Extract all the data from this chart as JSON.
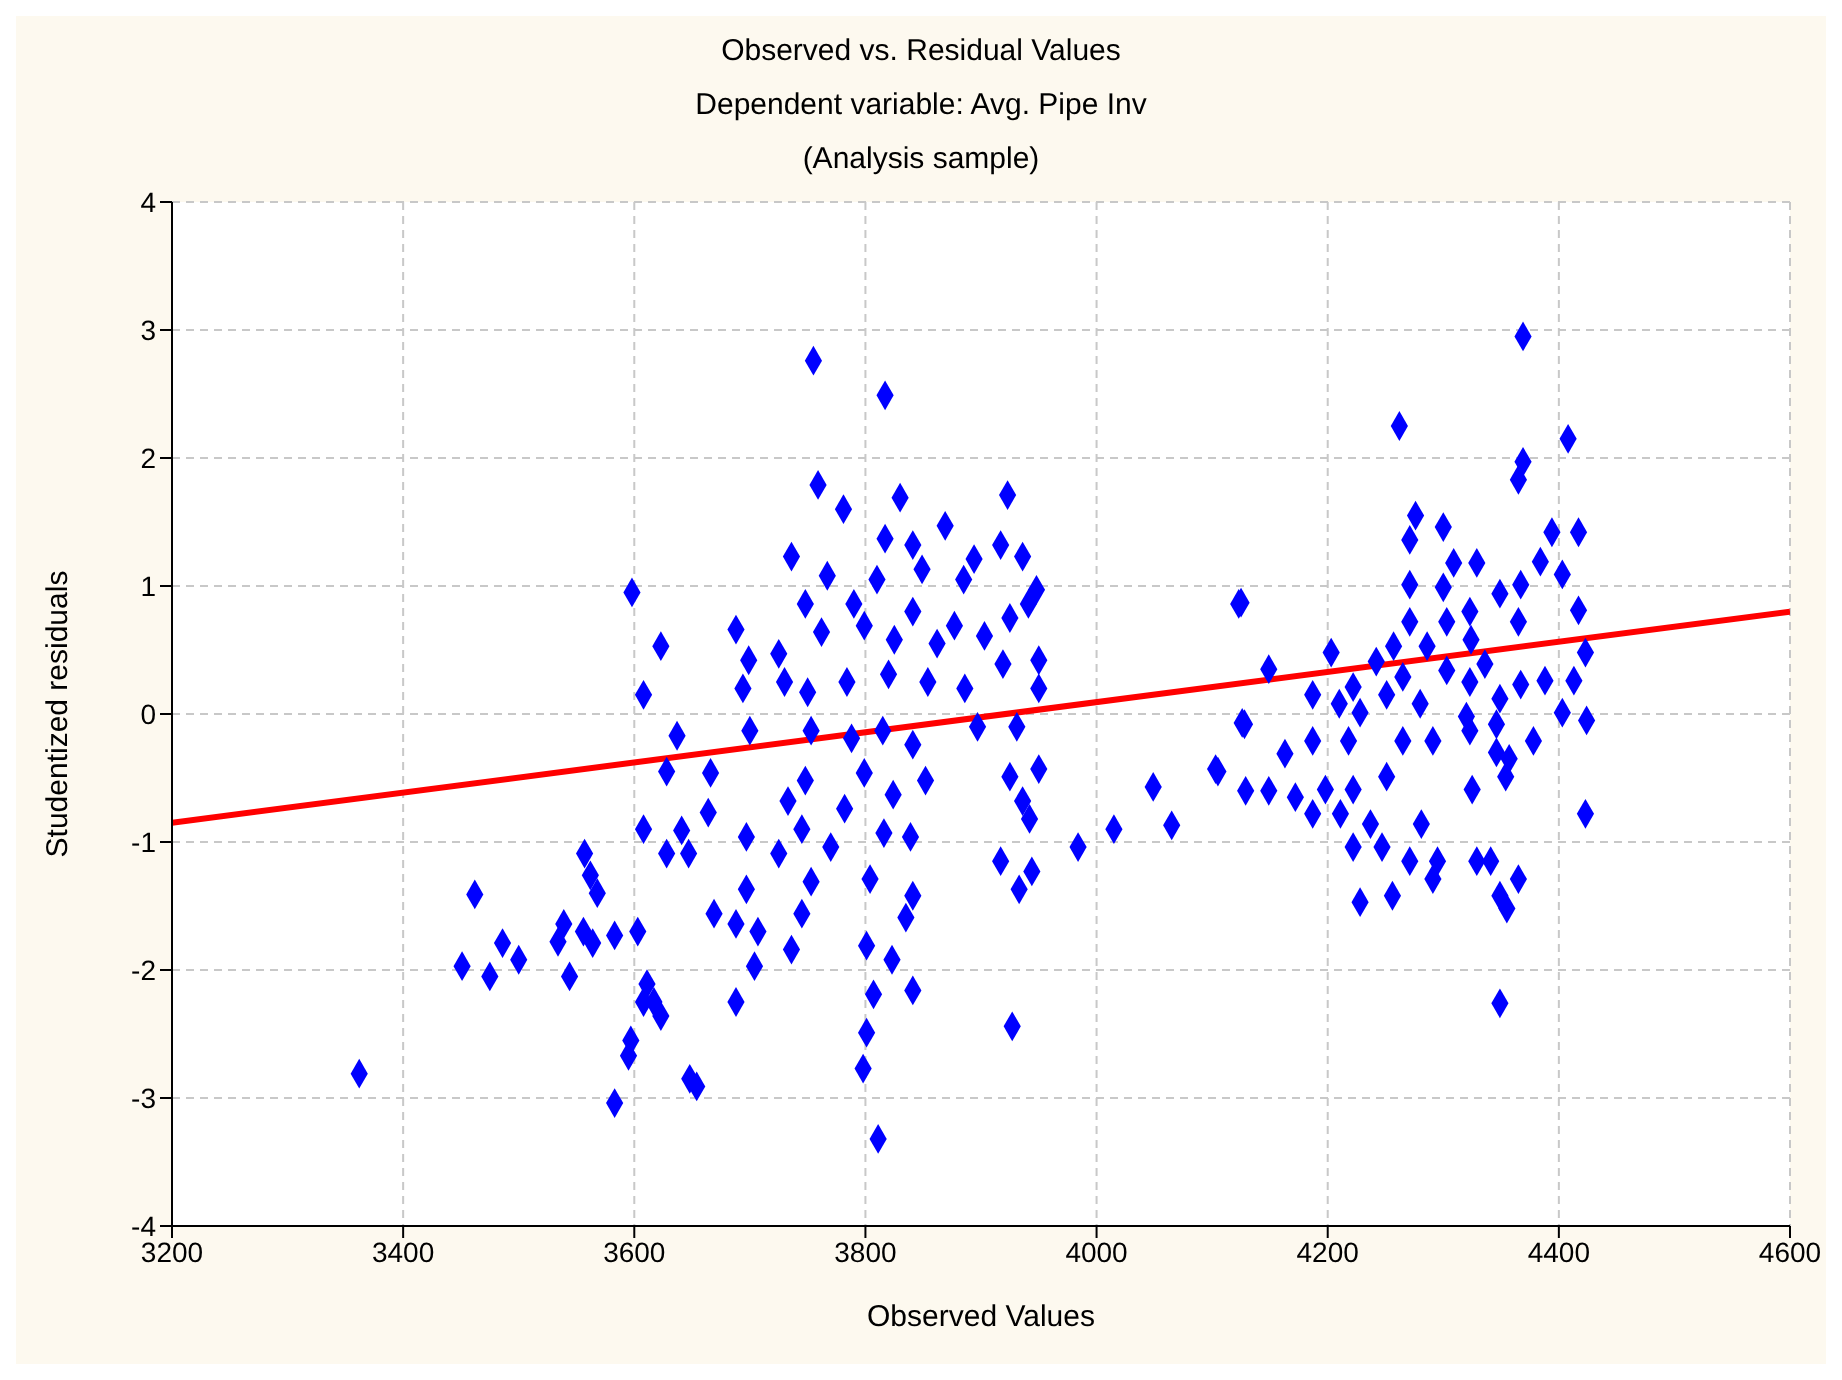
{
  "chart_data": {
    "type": "scatter",
    "title": "Observed vs. Residual Values",
    "subtitle": "Dependent variable: Avg. Pipe Inv",
    "annotations": [
      "(Analysis sample)"
    ],
    "xlabel": "Observed Values",
    "ylabel": "Studentized residuals",
    "xlim": [
      3200,
      4600
    ],
    "xticks": [
      3200,
      3400,
      3600,
      3800,
      4000,
      4200,
      4400,
      4600
    ],
    "ylim": [
      -4,
      4
    ],
    "yticks": [
      -4,
      -3,
      -2,
      -1,
      0,
      1,
      2,
      3,
      4
    ],
    "grid": true,
    "series": [
      {
        "color": "#0000ff",
        "marker": "diamond",
        "x": [
          3362,
          3462,
          3451,
          3475,
          3486,
          3500,
          3544,
          3534,
          3539,
          3556,
          3564,
          3583,
          3557,
          3562,
          3568,
          3603,
          3583,
          3595,
          3597,
          3598,
          3608,
          3623,
          3637,
          3628,
          3664,
          3608,
          3628,
          3647,
          3641,
          3611,
          3617,
          3623,
          3608,
          3654,
          3648,
          3669,
          3666,
          3755,
          3817,
          3759,
          3830,
          3923,
          3781,
          3869,
          3736,
          3817,
          3841,
          3917,
          3894,
          3936,
          3767,
          3810,
          3849,
          3885,
          3948,
          3748,
          3790,
          3841,
          3877,
          3925,
          3941,
          3688,
          3699,
          3725,
          3762,
          3799,
          3825,
          3862,
          3903,
          3694,
          3730,
          3750,
          3784,
          3820,
          3854,
          3886,
          3919,
          3950,
          3950,
          3700,
          3753,
          3788,
          3815,
          3841,
          3897,
          3931,
          3748,
          3733,
          3799,
          3782,
          3824,
          3852,
          3925,
          3950,
          3936,
          3942,
          3697,
          3725,
          3745,
          3770,
          3816,
          3839,
          3984,
          4015,
          3697,
          3753,
          3804,
          3841,
          3917,
          3933,
          3944,
          3688,
          3707,
          3745,
          3835,
          3704,
          3736,
          3801,
          3823,
          3688,
          3807,
          3841,
          3801,
          3798,
          3811,
          3927,
          4049,
          4065,
          4103,
          4123,
          4126,
          4369,
          4262,
          4408,
          4369,
          4365,
          4276,
          4271,
          4300,
          4394,
          4417,
          4384,
          4403,
          4309,
          4329,
          4271,
          4300,
          4349,
          4367,
          4303,
          4271,
          4323,
          4365,
          4417,
          4125,
          4257,
          4286,
          4324,
          4203,
          4423,
          4242,
          4265,
          4303,
          4323,
          4336,
          4149,
          4222,
          4187,
          4251,
          4388,
          4413,
          4367,
          4210,
          4228,
          4280,
          4349,
          4320,
          4403,
          4424,
          4128,
          4323,
          4346,
          4163,
          4187,
          4218,
          4265,
          4291,
          4378,
          4346,
          4105,
          4251,
          4357,
          4129,
          4149,
          4172,
          4198,
          4222,
          4325,
          4354,
          4187,
          4211,
          4423,
          4237,
          4281,
          4222,
          4247,
          4271,
          4295,
          4329,
          4341,
          4291,
          4365,
          4228,
          4256,
          4349,
          4355,
          4349
        ],
        "values": [
          -2.81,
          -1.41,
          -1.97,
          -2.05,
          -1.79,
          -1.92,
          -2.05,
          -1.78,
          -1.64,
          -1.7,
          -1.79,
          -1.73,
          -1.09,
          -1.26,
          -1.4,
          -1.7,
          -3.04,
          -2.67,
          -2.55,
          0.95,
          0.15,
          0.53,
          -0.17,
          -0.45,
          -0.77,
          -0.9,
          -1.09,
          -1.09,
          -0.91,
          -2.11,
          -2.25,
          -2.36,
          -2.25,
          -2.91,
          -2.85,
          -1.56,
          -0.46,
          2.76,
          2.49,
          1.79,
          1.69,
          1.71,
          1.6,
          1.47,
          1.23,
          1.37,
          1.32,
          1.32,
          1.21,
          1.23,
          1.08,
          1.05,
          1.13,
          1.05,
          0.97,
          0.86,
          0.86,
          0.8,
          0.69,
          0.75,
          0.86,
          0.66,
          0.42,
          0.47,
          0.64,
          0.69,
          0.58,
          0.55,
          0.61,
          0.2,
          0.25,
          0.17,
          0.25,
          0.31,
          0.25,
          0.2,
          0.39,
          0.42,
          0.2,
          -0.13,
          -0.13,
          -0.19,
          -0.13,
          -0.24,
          -0.1,
          -0.1,
          -0.52,
          -0.68,
          -0.46,
          -0.74,
          -0.63,
          -0.52,
          -0.49,
          -0.43,
          -0.68,
          -0.82,
          -0.96,
          -1.09,
          -0.9,
          -1.04,
          -0.93,
          -0.96,
          -1.04,
          -0.9,
          -1.37,
          -1.31,
          -1.29,
          -1.42,
          -1.15,
          -1.37,
          -1.23,
          -1.64,
          -1.7,
          -1.56,
          -1.59,
          -1.97,
          -1.84,
          -1.81,
          -1.92,
          -2.25,
          -2.19,
          -2.16,
          -2.49,
          -2.77,
          -3.32,
          -2.44,
          -0.57,
          -0.87,
          -0.43,
          0.86,
          -0.07,
          2.95,
          2.25,
          2.15,
          1.97,
          1.83,
          1.55,
          1.36,
          1.46,
          1.42,
          1.42,
          1.19,
          1.09,
          1.18,
          1.18,
          1.01,
          0.99,
          0.94,
          1.01,
          0.72,
          0.72,
          0.8,
          0.72,
          0.81,
          0.87,
          0.53,
          0.53,
          0.58,
          0.48,
          0.48,
          0.41,
          0.29,
          0.34,
          0.25,
          0.39,
          0.35,
          0.21,
          0.15,
          0.15,
          0.26,
          0.26,
          0.23,
          0.08,
          0.01,
          0.08,
          0.12,
          -0.02,
          0.01,
          -0.05,
          -0.08,
          -0.13,
          -0.08,
          -0.31,
          -0.21,
          -0.21,
          -0.21,
          -0.21,
          -0.21,
          -0.3,
          -0.45,
          -0.49,
          -0.35,
          -0.6,
          -0.6,
          -0.65,
          -0.59,
          -0.59,
          -0.59,
          -0.49,
          -0.78,
          -0.78,
          -0.78,
          -0.86,
          -0.86,
          -1.04,
          -1.04,
          -1.15,
          -1.15,
          -1.15,
          -1.15,
          -1.29,
          -1.29,
          -1.47,
          -1.42,
          -1.42,
          -1.52,
          -2.26
        ]
      },
      {
        "type": "line",
        "color": "#ff0000",
        "x": [
          3200,
          4600
        ],
        "values": [
          -0.85,
          0.8
        ]
      }
    ]
  }
}
